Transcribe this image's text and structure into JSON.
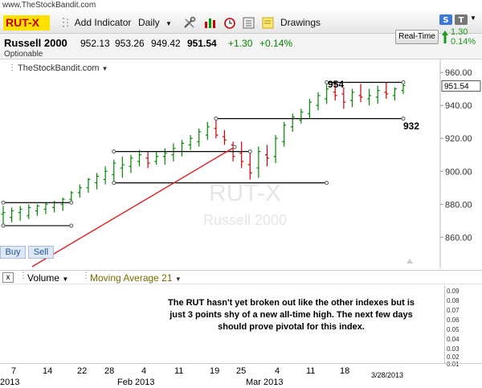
{
  "site_url": "www.TheStockBandit.com",
  "toolbar": {
    "symbol": "RUT-X",
    "add_indicator": "Add Indicator",
    "interval": "Daily",
    "drawings": "Drawings"
  },
  "quote": {
    "name": "Russell 2000",
    "open": "952.13",
    "high": "953.26",
    "low": "949.42",
    "last": "951.54",
    "change": "+1.30",
    "change_pct": "+0.14%",
    "optionable": "Optionable",
    "realtime_label": "Real-Time",
    "side_change": "1.30",
    "side_pct": "0.14%"
  },
  "chart": {
    "source_label": "TheStockBandit.com",
    "watermark_symbol": "RUT-X",
    "watermark_name": "Russell 2000",
    "buy": "Buy",
    "sell": "Sell",
    "price_label": "951.54",
    "annotation_high": "954",
    "annotation_low": "932",
    "y_ticks": [
      "960.00",
      "940.00",
      "920.00",
      "900.00",
      "880.00",
      "860.00"
    ]
  },
  "chart_data": {
    "type": "bar",
    "title": "",
    "ylim": [
      846,
      964
    ],
    "ohlc_daily_approx": [
      [
        874,
        879,
        868,
        875
      ],
      [
        872,
        878,
        869,
        876
      ],
      [
        875,
        879,
        870,
        877
      ],
      [
        873,
        880,
        871,
        878
      ],
      [
        876,
        880,
        873,
        879
      ],
      [
        877,
        881,
        874,
        880
      ],
      [
        878,
        882,
        875,
        881
      ],
      [
        880,
        884,
        876,
        883
      ],
      [
        883,
        888,
        880,
        887
      ],
      [
        887,
        892,
        884,
        890
      ],
      [
        890,
        896,
        887,
        895
      ],
      [
        893,
        899,
        889,
        897
      ],
      [
        895,
        903,
        892,
        900
      ],
      [
        898,
        907,
        894,
        905
      ],
      [
        902,
        909,
        896,
        904
      ],
      [
        903,
        910,
        899,
        908
      ],
      [
        906,
        913,
        903,
        910
      ],
      [
        908,
        912,
        902,
        905
      ],
      [
        906,
        912,
        904,
        909
      ],
      [
        909,
        914,
        904,
        911
      ],
      [
        910,
        917,
        906,
        914
      ],
      [
        912,
        919,
        909,
        917
      ],
      [
        916,
        922,
        913,
        920
      ],
      [
        918,
        926,
        915,
        924
      ],
      [
        922,
        930,
        919,
        927
      ],
      [
        926,
        933,
        920,
        922
      ],
      [
        921,
        925,
        916,
        919
      ],
      [
        916,
        918,
        906,
        909
      ],
      [
        911,
        918,
        902,
        906
      ],
      [
        904,
        911,
        895,
        899
      ],
      [
        902,
        915,
        896,
        912
      ],
      [
        910,
        916,
        903,
        908
      ],
      [
        909,
        922,
        905,
        920
      ],
      [
        918,
        930,
        915,
        928
      ],
      [
        927,
        935,
        924,
        933
      ],
      [
        931,
        938,
        929,
        936
      ],
      [
        935,
        944,
        932,
        942
      ],
      [
        940,
        948,
        937,
        946
      ],
      [
        944,
        953,
        941,
        950
      ],
      [
        948,
        954,
        943,
        946
      ],
      [
        947,
        951,
        938,
        942
      ],
      [
        943,
        950,
        939,
        948
      ],
      [
        946,
        953,
        942,
        945
      ],
      [
        944,
        950,
        940,
        946
      ],
      [
        945,
        952,
        941,
        949
      ],
      [
        948,
        954,
        944,
        947
      ],
      [
        946,
        951,
        943,
        950
      ],
      [
        949,
        953,
        947,
        952
      ]
    ],
    "support_resistance": [
      954,
      932
    ]
  },
  "volume": {
    "close": "x",
    "label": "Volume",
    "indicator": "Moving Average 21",
    "ticks": [
      "0.09",
      "0.08",
      "0.07",
      "0.06",
      "0.05",
      "0.04",
      "0.03",
      "0.02",
      "0.01"
    ],
    "note": "The RUT hasn't yet broken out like the other indexes but is just 3 points shy of a new all-time high. The next few days should prove pivotal for this index."
  },
  "xaxis": {
    "labels": [
      "7",
      "14",
      "22",
      "28",
      "4",
      "11",
      "19",
      "25",
      "4",
      "11",
      "18",
      "3/28/2013"
    ],
    "years": [
      "2013",
      "Feb 2013",
      "Mar 2013"
    ]
  },
  "colors": {
    "symbol_bg": "#ffe100",
    "up": "#008800",
    "down": "#cc0000",
    "trend": "#e02020"
  }
}
